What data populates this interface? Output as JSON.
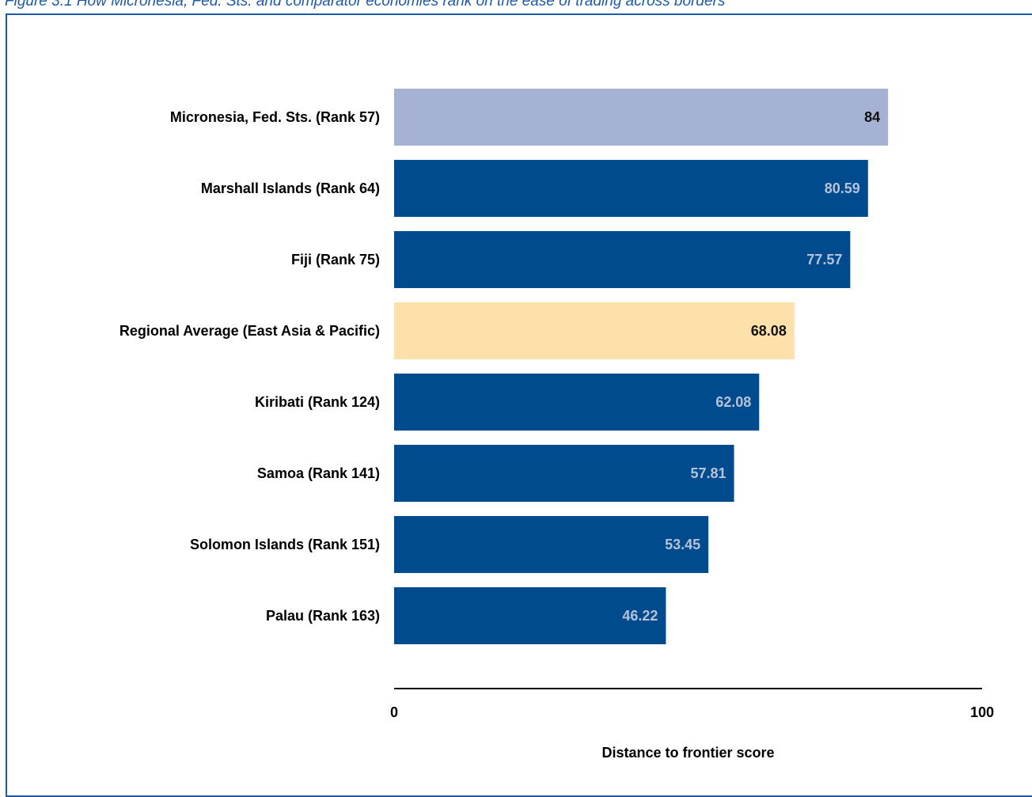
{
  "figure_title": "Figure 3.1 How Micronesia, Fed. Sts. and comparator economies rank on the ease of trading across borders",
  "colors": {
    "highlight": "#a6b2d3",
    "regional": "#fde0aa",
    "default": "#004b8d",
    "frame": "#1f5aa6",
    "label_on_light": "#111111",
    "label_on_dark": "#b5c3da"
  },
  "chart_data": {
    "type": "bar",
    "orientation": "horizontal",
    "categories": [
      "Micronesia, Fed. Sts. (Rank 57)",
      "Marshall Islands (Rank 64)",
      "Fiji (Rank 75)",
      "Regional Average (East Asia & Pacific)",
      "Kiribati (Rank 124)",
      "Samoa (Rank 141)",
      "Solomon Islands (Rank 151)",
      "Palau (Rank 163)"
    ],
    "values": [
      84,
      80.59,
      77.57,
      68.08,
      62.08,
      57.81,
      53.45,
      46.22
    ],
    "value_labels": [
      "84",
      "80.59",
      "77.57",
      "68.08",
      "62.08",
      "57.81",
      "53.45",
      "46.22"
    ],
    "bar_styles": [
      "highlight",
      "default",
      "default",
      "regional",
      "default",
      "default",
      "default",
      "default"
    ],
    "xlim": [
      0,
      100
    ],
    "xticks": [
      "0",
      "100"
    ],
    "xlabel": "Distance to frontier score",
    "grid": false
  }
}
